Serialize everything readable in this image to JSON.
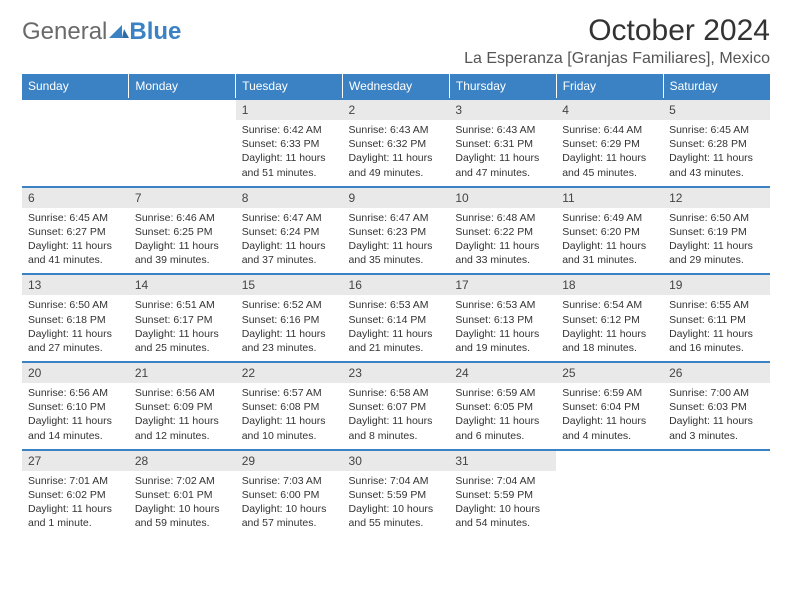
{
  "logo": {
    "text_gray": "General",
    "text_blue": "Blue"
  },
  "title": "October 2024",
  "location": "La Esperanza [Granjas Familiares], Mexico",
  "colors": {
    "header_bg": "#3b82c4",
    "header_text": "#ffffff",
    "daynum_bg": "#e9e9e9",
    "border": "#3b82c4",
    "logo_gray": "#6a6a6a",
    "logo_blue": "#3b82c4",
    "page_bg": "#ffffff",
    "body_text": "#333333"
  },
  "days_of_week": [
    "Sunday",
    "Monday",
    "Tuesday",
    "Wednesday",
    "Thursday",
    "Friday",
    "Saturday"
  ],
  "weeks": [
    [
      null,
      null,
      {
        "n": "1",
        "sunrise": "Sunrise: 6:42 AM",
        "sunset": "Sunset: 6:33 PM",
        "dl1": "Daylight: 11 hours",
        "dl2": "and 51 minutes."
      },
      {
        "n": "2",
        "sunrise": "Sunrise: 6:43 AM",
        "sunset": "Sunset: 6:32 PM",
        "dl1": "Daylight: 11 hours",
        "dl2": "and 49 minutes."
      },
      {
        "n": "3",
        "sunrise": "Sunrise: 6:43 AM",
        "sunset": "Sunset: 6:31 PM",
        "dl1": "Daylight: 11 hours",
        "dl2": "and 47 minutes."
      },
      {
        "n": "4",
        "sunrise": "Sunrise: 6:44 AM",
        "sunset": "Sunset: 6:29 PM",
        "dl1": "Daylight: 11 hours",
        "dl2": "and 45 minutes."
      },
      {
        "n": "5",
        "sunrise": "Sunrise: 6:45 AM",
        "sunset": "Sunset: 6:28 PM",
        "dl1": "Daylight: 11 hours",
        "dl2": "and 43 minutes."
      }
    ],
    [
      {
        "n": "6",
        "sunrise": "Sunrise: 6:45 AM",
        "sunset": "Sunset: 6:27 PM",
        "dl1": "Daylight: 11 hours",
        "dl2": "and 41 minutes."
      },
      {
        "n": "7",
        "sunrise": "Sunrise: 6:46 AM",
        "sunset": "Sunset: 6:25 PM",
        "dl1": "Daylight: 11 hours",
        "dl2": "and 39 minutes."
      },
      {
        "n": "8",
        "sunrise": "Sunrise: 6:47 AM",
        "sunset": "Sunset: 6:24 PM",
        "dl1": "Daylight: 11 hours",
        "dl2": "and 37 minutes."
      },
      {
        "n": "9",
        "sunrise": "Sunrise: 6:47 AM",
        "sunset": "Sunset: 6:23 PM",
        "dl1": "Daylight: 11 hours",
        "dl2": "and 35 minutes."
      },
      {
        "n": "10",
        "sunrise": "Sunrise: 6:48 AM",
        "sunset": "Sunset: 6:22 PM",
        "dl1": "Daylight: 11 hours",
        "dl2": "and 33 minutes."
      },
      {
        "n": "11",
        "sunrise": "Sunrise: 6:49 AM",
        "sunset": "Sunset: 6:20 PM",
        "dl1": "Daylight: 11 hours",
        "dl2": "and 31 minutes."
      },
      {
        "n": "12",
        "sunrise": "Sunrise: 6:50 AM",
        "sunset": "Sunset: 6:19 PM",
        "dl1": "Daylight: 11 hours",
        "dl2": "and 29 minutes."
      }
    ],
    [
      {
        "n": "13",
        "sunrise": "Sunrise: 6:50 AM",
        "sunset": "Sunset: 6:18 PM",
        "dl1": "Daylight: 11 hours",
        "dl2": "and 27 minutes."
      },
      {
        "n": "14",
        "sunrise": "Sunrise: 6:51 AM",
        "sunset": "Sunset: 6:17 PM",
        "dl1": "Daylight: 11 hours",
        "dl2": "and 25 minutes."
      },
      {
        "n": "15",
        "sunrise": "Sunrise: 6:52 AM",
        "sunset": "Sunset: 6:16 PM",
        "dl1": "Daylight: 11 hours",
        "dl2": "and 23 minutes."
      },
      {
        "n": "16",
        "sunrise": "Sunrise: 6:53 AM",
        "sunset": "Sunset: 6:14 PM",
        "dl1": "Daylight: 11 hours",
        "dl2": "and 21 minutes."
      },
      {
        "n": "17",
        "sunrise": "Sunrise: 6:53 AM",
        "sunset": "Sunset: 6:13 PM",
        "dl1": "Daylight: 11 hours",
        "dl2": "and 19 minutes."
      },
      {
        "n": "18",
        "sunrise": "Sunrise: 6:54 AM",
        "sunset": "Sunset: 6:12 PM",
        "dl1": "Daylight: 11 hours",
        "dl2": "and 18 minutes."
      },
      {
        "n": "19",
        "sunrise": "Sunrise: 6:55 AM",
        "sunset": "Sunset: 6:11 PM",
        "dl1": "Daylight: 11 hours",
        "dl2": "and 16 minutes."
      }
    ],
    [
      {
        "n": "20",
        "sunrise": "Sunrise: 6:56 AM",
        "sunset": "Sunset: 6:10 PM",
        "dl1": "Daylight: 11 hours",
        "dl2": "and 14 minutes."
      },
      {
        "n": "21",
        "sunrise": "Sunrise: 6:56 AM",
        "sunset": "Sunset: 6:09 PM",
        "dl1": "Daylight: 11 hours",
        "dl2": "and 12 minutes."
      },
      {
        "n": "22",
        "sunrise": "Sunrise: 6:57 AM",
        "sunset": "Sunset: 6:08 PM",
        "dl1": "Daylight: 11 hours",
        "dl2": "and 10 minutes."
      },
      {
        "n": "23",
        "sunrise": "Sunrise: 6:58 AM",
        "sunset": "Sunset: 6:07 PM",
        "dl1": "Daylight: 11 hours",
        "dl2": "and 8 minutes."
      },
      {
        "n": "24",
        "sunrise": "Sunrise: 6:59 AM",
        "sunset": "Sunset: 6:05 PM",
        "dl1": "Daylight: 11 hours",
        "dl2": "and 6 minutes."
      },
      {
        "n": "25",
        "sunrise": "Sunrise: 6:59 AM",
        "sunset": "Sunset: 6:04 PM",
        "dl1": "Daylight: 11 hours",
        "dl2": "and 4 minutes."
      },
      {
        "n": "26",
        "sunrise": "Sunrise: 7:00 AM",
        "sunset": "Sunset: 6:03 PM",
        "dl1": "Daylight: 11 hours",
        "dl2": "and 3 minutes."
      }
    ],
    [
      {
        "n": "27",
        "sunrise": "Sunrise: 7:01 AM",
        "sunset": "Sunset: 6:02 PM",
        "dl1": "Daylight: 11 hours",
        "dl2": "and 1 minute."
      },
      {
        "n": "28",
        "sunrise": "Sunrise: 7:02 AM",
        "sunset": "Sunset: 6:01 PM",
        "dl1": "Daylight: 10 hours",
        "dl2": "and 59 minutes."
      },
      {
        "n": "29",
        "sunrise": "Sunrise: 7:03 AM",
        "sunset": "Sunset: 6:00 PM",
        "dl1": "Daylight: 10 hours",
        "dl2": "and 57 minutes."
      },
      {
        "n": "30",
        "sunrise": "Sunrise: 7:04 AM",
        "sunset": "Sunset: 5:59 PM",
        "dl1": "Daylight: 10 hours",
        "dl2": "and 55 minutes."
      },
      {
        "n": "31",
        "sunrise": "Sunrise: 7:04 AM",
        "sunset": "Sunset: 5:59 PM",
        "dl1": "Daylight: 10 hours",
        "dl2": "and 54 minutes."
      },
      null,
      null
    ]
  ]
}
